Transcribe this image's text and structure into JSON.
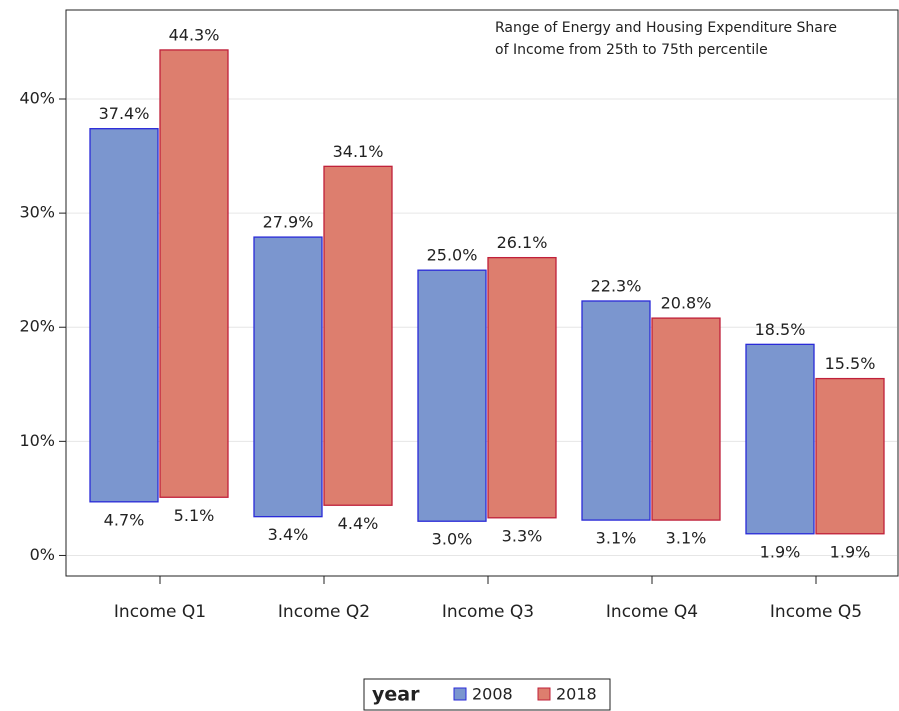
{
  "chart_data": {
    "type": "range-bar",
    "annotation": [
      "Range of Energy and Housing Expenditure Share",
      "of Income from 25th to 75th percentile"
    ],
    "categories": [
      "Income Q1",
      "Income Q2",
      "Income Q3",
      "Income Q4",
      "Income Q5"
    ],
    "series": [
      {
        "name": "2008",
        "color": "#7b96cf",
        "stroke": "#2a2ad8",
        "values": [
          37.4,
          27.9,
          25.0,
          22.3,
          18.5
        ],
        "value_labels": [
          "37.4%",
          "27.9%",
          "25.0%",
          "22.3%",
          "18.5%"
        ],
        "low": [
          4.7,
          3.4,
          3.0,
          3.1,
          1.9
        ],
        "low_labels": [
          "4.7%",
          "3.4%",
          "3.0%",
          "3.1%",
          "1.9%"
        ]
      },
      {
        "name": "2018",
        "color": "#dd7e6e",
        "stroke": "#c0203a",
        "values": [
          44.3,
          34.1,
          26.1,
          20.8,
          15.5
        ],
        "value_labels": [
          "44.3%",
          "34.1%",
          "26.1%",
          "20.8%",
          "15.5%"
        ],
        "low": [
          5.1,
          4.4,
          3.3,
          3.1,
          1.9
        ],
        "low_labels": [
          "5.1%",
          "4.4%",
          "3.3%",
          "3.1%",
          "1.9%"
        ]
      }
    ],
    "ylim": [
      -1.8,
      47.8
    ],
    "yticks": [
      {
        "value": 0,
        "label": "0%"
      },
      {
        "value": 10,
        "label": "10%"
      },
      {
        "value": 20,
        "label": "20%"
      },
      {
        "value": 30,
        "label": "30%"
      },
      {
        "value": 40,
        "label": "40%"
      }
    ],
    "grid": true,
    "legend_title": "year"
  }
}
